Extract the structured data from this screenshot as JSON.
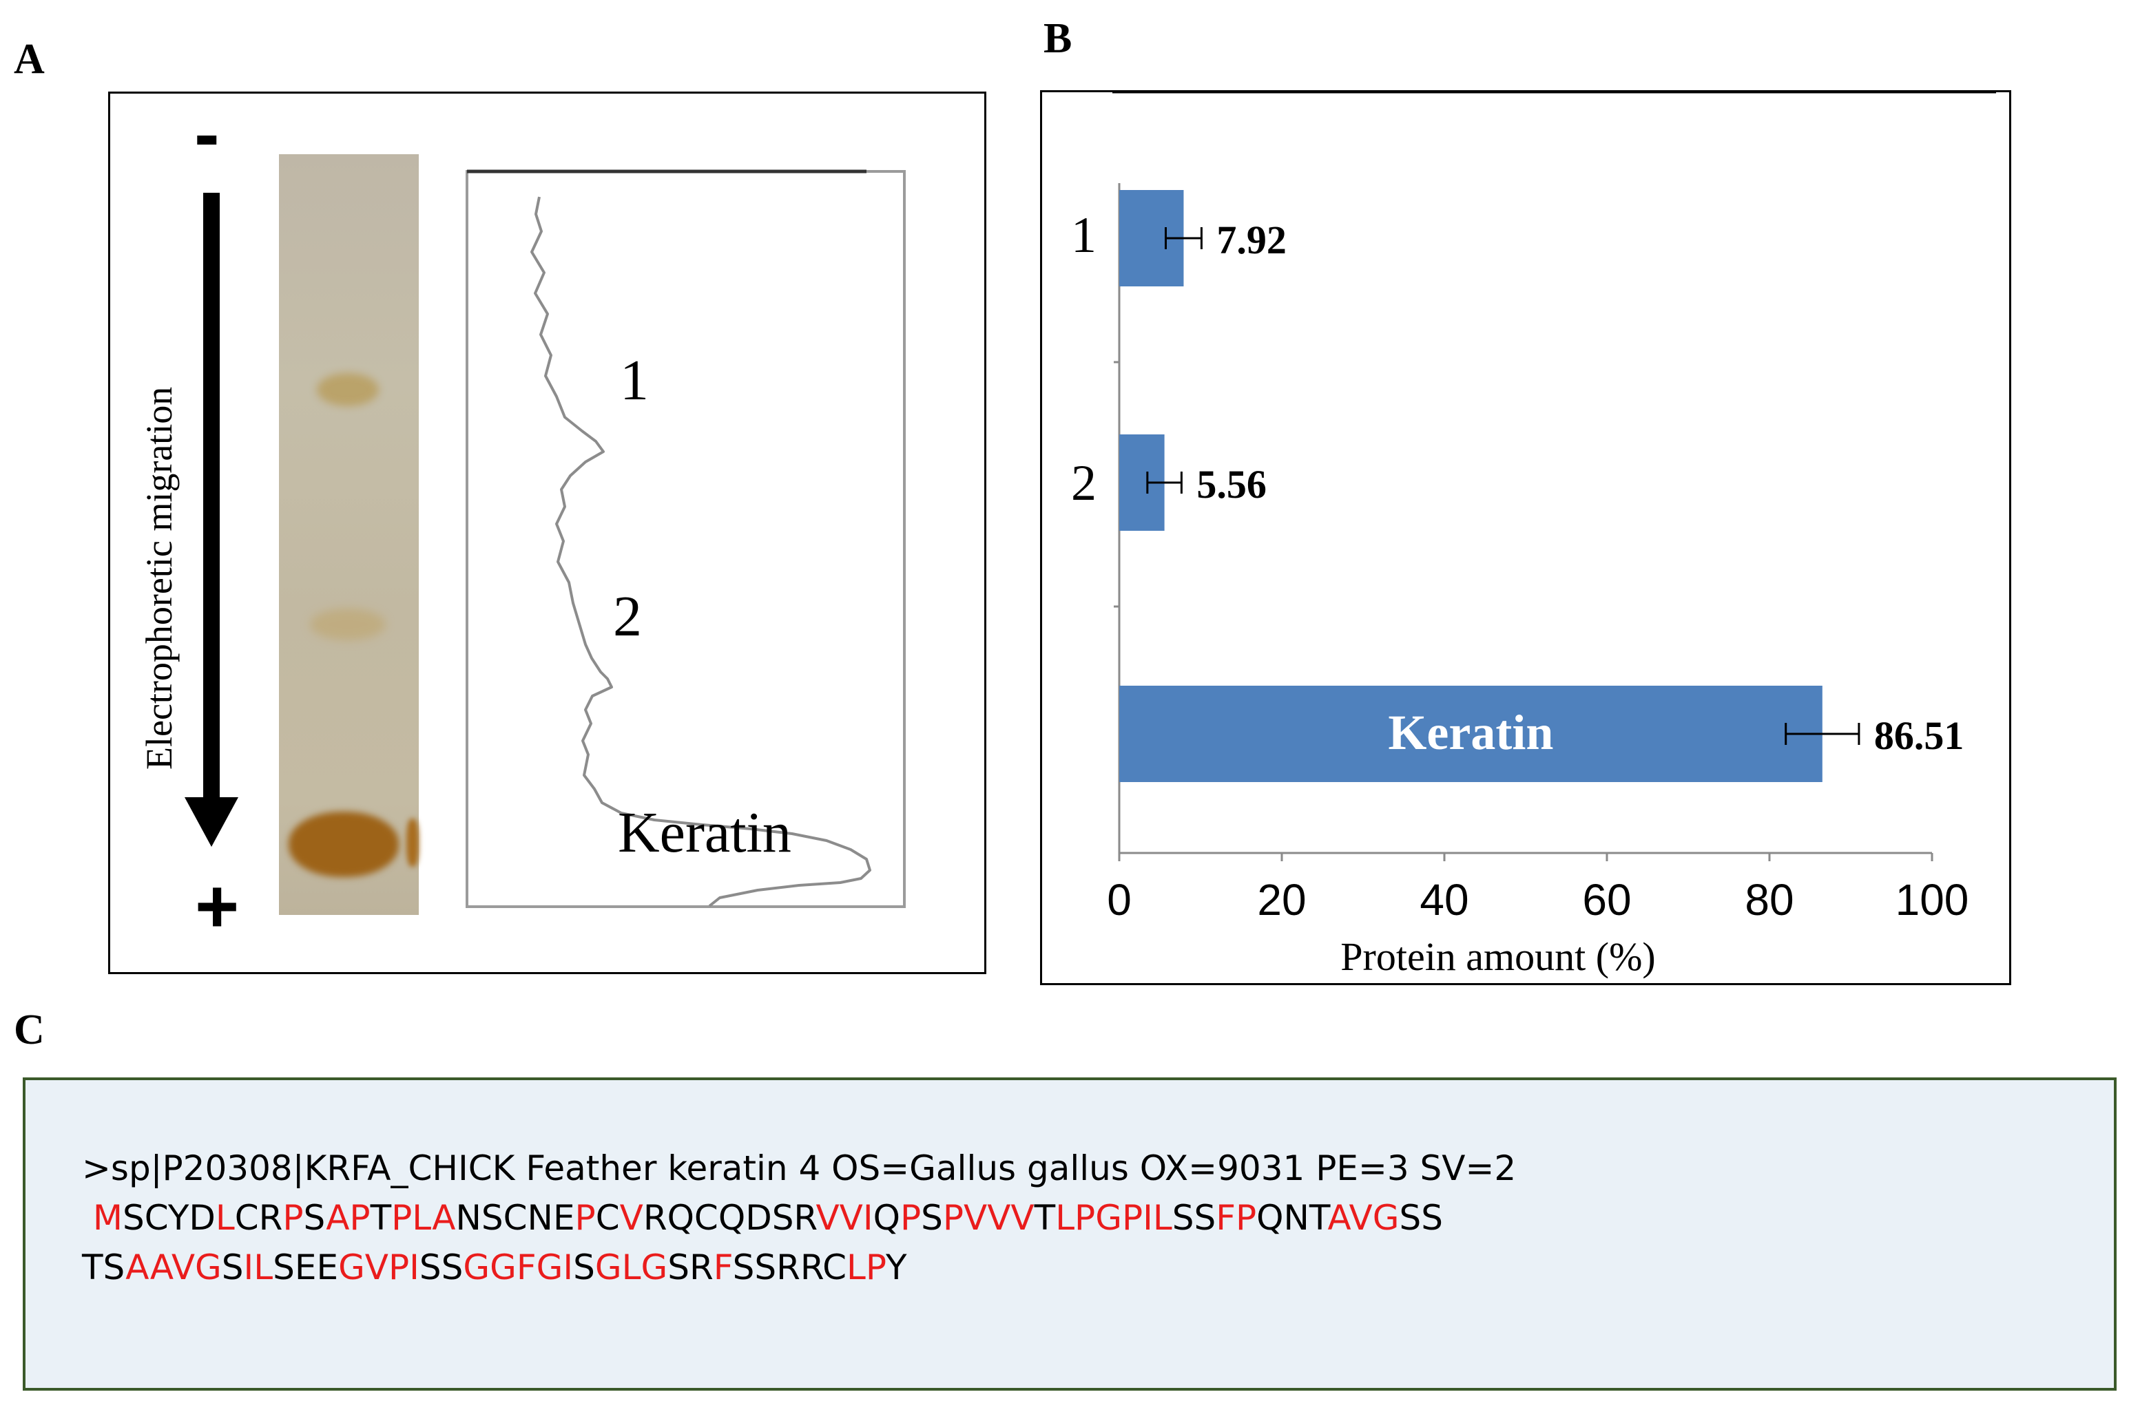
{
  "panels": {
    "a": {
      "letter": "A",
      "minus_sign": "-",
      "plus_sign": "+",
      "arrow_label": "Electrophoretic migration",
      "peak_labels": [
        "1",
        "2",
        "Keratin"
      ]
    },
    "b": {
      "letter": "B"
    },
    "c": {
      "letter": "C"
    }
  },
  "chart_data": {
    "type": "bar",
    "orientation": "horizontal",
    "categories": [
      "1",
      "2",
      "Keratin"
    ],
    "values": [
      7.92,
      5.56,
      86.51
    ],
    "error": [
      2.2,
      2.1,
      4.5
    ],
    "data_labels": [
      "7.92",
      "5.56",
      "86.51"
    ],
    "bar_color": "#4f81bd",
    "xlabel": "Protein amount (%)",
    "xlim": [
      0,
      100
    ],
    "xticks": [
      "0",
      "20",
      "40",
      "60",
      "80",
      "100"
    ],
    "grid": false
  },
  "sequence": {
    "header": ">sp|P20308|KRFA_CHICK Feather keratin 4 OS=Gallus gallus OX=9031 PE=3 SV=2",
    "highlight_color": "#ea1c1c",
    "lines": [
      [
        {
          "t": " ",
          "h": false
        },
        {
          "t": "M",
          "h": true
        },
        {
          "t": "SCYD",
          "h": false
        },
        {
          "t": "L",
          "h": true
        },
        {
          "t": "CR",
          "h": false
        },
        {
          "t": "P",
          "h": true
        },
        {
          "t": "S",
          "h": false
        },
        {
          "t": "AP",
          "h": true
        },
        {
          "t": "T",
          "h": false
        },
        {
          "t": "PLA",
          "h": true
        },
        {
          "t": "NSCNE",
          "h": false
        },
        {
          "t": "P",
          "h": true
        },
        {
          "t": "C",
          "h": false
        },
        {
          "t": "V",
          "h": true
        },
        {
          "t": "RQCQDSR",
          "h": false
        },
        {
          "t": "VVI",
          "h": true
        },
        {
          "t": "Q",
          "h": false
        },
        {
          "t": "P",
          "h": true
        },
        {
          "t": "S",
          "h": false
        },
        {
          "t": "PVVV",
          "h": true
        },
        {
          "t": "T",
          "h": false
        },
        {
          "t": "LPGPIL",
          "h": true
        },
        {
          "t": "SS",
          "h": false
        },
        {
          "t": "FP",
          "h": true
        },
        {
          "t": "QNT",
          "h": false
        },
        {
          "t": "AVG",
          "h": true
        },
        {
          "t": "SS",
          "h": false
        }
      ],
      [
        {
          "t": "TS",
          "h": false
        },
        {
          "t": "AAVG",
          "h": true
        },
        {
          "t": "S",
          "h": false
        },
        {
          "t": "IL",
          "h": true
        },
        {
          "t": "SEE",
          "h": false
        },
        {
          "t": "GVPI",
          "h": true
        },
        {
          "t": "SS",
          "h": false
        },
        {
          "t": "GGFGI",
          "h": true
        },
        {
          "t": "S",
          "h": false
        },
        {
          "t": "GLG",
          "h": true
        },
        {
          "t": "SR",
          "h": false
        },
        {
          "t": "F",
          "h": true
        },
        {
          "t": "SSRRC",
          "h": false
        },
        {
          "t": "LP",
          "h": true
        },
        {
          "t": "Y",
          "h": false
        }
      ]
    ]
  }
}
